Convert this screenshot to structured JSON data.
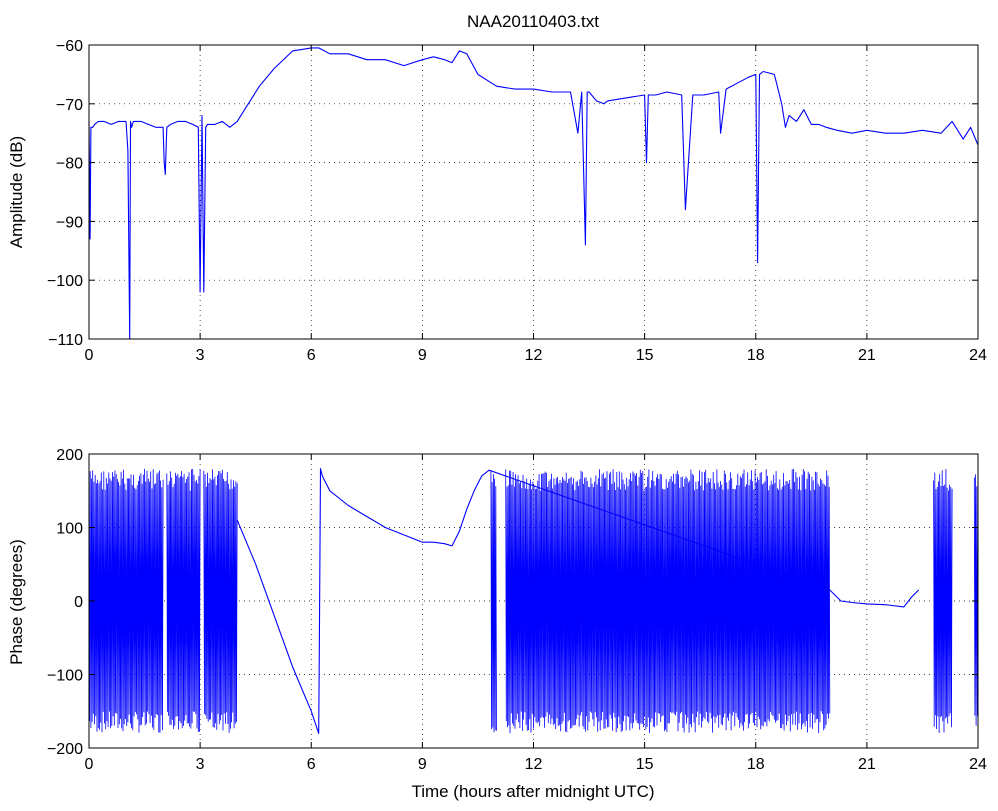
{
  "chart_data": [
    {
      "type": "line",
      "title": "NAA20110403.txt",
      "xlabel": "",
      "ylabel": "Amplitude (dB)",
      "xlim": [
        0,
        24
      ],
      "ylim": [
        -110,
        -60
      ],
      "xticks": [
        "0",
        "3",
        "6",
        "9",
        "12",
        "15",
        "18",
        "21",
        "24"
      ],
      "yticks": [
        "-60",
        "-70",
        "-80",
        "-90",
        "-100",
        "-110"
      ],
      "grid": true,
      "color": "#0000ff",
      "x": [
        0,
        0.03,
        0.05,
        0.1,
        0.15,
        0.25,
        0.4,
        0.6,
        0.8,
        1.0,
        1.05,
        1.1,
        1.12,
        1.15,
        1.2,
        1.4,
        1.6,
        1.8,
        2.0,
        2.03,
        2.06,
        2.1,
        2.2,
        2.4,
        2.6,
        2.8,
        2.95,
        3.0,
        3.05,
        3.1,
        3.15,
        3.2,
        3.4,
        3.6,
        3.8,
        4.0,
        4.3,
        4.6,
        5.0,
        5.5,
        6.0,
        6.2,
        6.5,
        7.0,
        7.5,
        8.0,
        8.5,
        9.0,
        9.3,
        9.6,
        9.8,
        10.0,
        10.2,
        10.5,
        11.0,
        11.5,
        12.0,
        12.5,
        13.0,
        13.2,
        13.3,
        13.4,
        13.45,
        13.5,
        13.7,
        13.9,
        14.0,
        14.5,
        15.0,
        15.05,
        15.1,
        15.3,
        15.6,
        16.0,
        16.1,
        16.3,
        16.6,
        17.0,
        17.05,
        17.2,
        17.5,
        17.8,
        18.0,
        18.05,
        18.1,
        18.2,
        18.5,
        18.7,
        18.8,
        18.9,
        19.1,
        19.3,
        19.5,
        19.7,
        19.9,
        20.2,
        20.6,
        21.0,
        21.5,
        22.0,
        22.5,
        23.0,
        23.3,
        23.6,
        23.8,
        24.0
      ],
      "values": [
        -73,
        -93,
        -74,
        -74,
        -73.5,
        -73,
        -73,
        -73.5,
        -73,
        -73,
        -78,
        -110,
        -73,
        -74,
        -73,
        -73,
        -73.5,
        -74,
        -74,
        -80,
        -82,
        -74,
        -73.5,
        -73,
        -73,
        -73.5,
        -74,
        -102,
        -72,
        -102,
        -74,
        -73.5,
        -73.5,
        -73,
        -74,
        -73,
        -70,
        -67,
        -64,
        -61,
        -60.5,
        -60.5,
        -61.5,
        -61.5,
        -62.5,
        -62.5,
        -63.5,
        -62.5,
        -62,
        -62.5,
        -63,
        -61,
        -61.5,
        -65,
        -67,
        -67.5,
        -67.5,
        -68,
        -68,
        -75,
        -68,
        -94,
        -68,
        -68,
        -69.5,
        -70,
        -69.5,
        -69,
        -68.5,
        -80,
        -68.5,
        -68.5,
        -68,
        -68.5,
        -88,
        -68.5,
        -68.5,
        -68,
        -75,
        -67.5,
        -66.5,
        -65.5,
        -65,
        -97,
        -65,
        -64.5,
        -65,
        -70,
        -74,
        -72,
        -73,
        -71,
        -73.5,
        -73.5,
        -74,
        -74.5,
        -75,
        -74.5,
        -75,
        -75,
        -74.5,
        -75,
        -73,
        -76,
        -74,
        -77
      ]
    },
    {
      "type": "line",
      "title": "",
      "xlabel": "Time (hours after midnight UTC)",
      "ylabel": "Phase (degrees)",
      "xlim": [
        0,
        24
      ],
      "ylim": [
        -200,
        200
      ],
      "xticks": [
        "0",
        "3",
        "6",
        "9",
        "12",
        "15",
        "18",
        "21",
        "24"
      ],
      "yticks": [
        "200",
        "100",
        "0",
        "-100",
        "-200"
      ],
      "grid": true,
      "color": "#0000ff",
      "x": [
        4.0,
        4.5,
        5.0,
        5.5,
        6.0,
        6.2,
        6.22,
        6.25,
        6.3,
        6.5,
        7.0,
        7.5,
        8.0,
        8.5,
        9.0,
        9.3,
        9.6,
        9.8,
        10.0,
        10.2,
        10.4,
        10.6,
        10.8,
        20.0,
        20.3,
        20.6,
        21.0,
        21.5,
        22.0,
        22.2,
        22.4
      ],
      "values": [
        110,
        50,
        -20,
        -90,
        -150,
        -180,
        -50,
        180,
        170,
        150,
        130,
        115,
        100,
        90,
        80,
        80,
        78,
        75,
        95,
        125,
        150,
        170,
        178,
        15,
        0,
        -2,
        -4,
        -5,
        -8,
        5,
        15
      ],
      "noise_bands": [
        [
          0.0,
          2.0
        ],
        [
          2.1,
          3.0
        ],
        [
          3.1,
          4.0
        ],
        [
          10.85,
          11.0
        ],
        [
          11.25,
          20.0
        ],
        [
          22.8,
          23.3
        ],
        [
          23.9,
          24.0
        ]
      ],
      "noise_range": [
        -180,
        180
      ]
    }
  ]
}
